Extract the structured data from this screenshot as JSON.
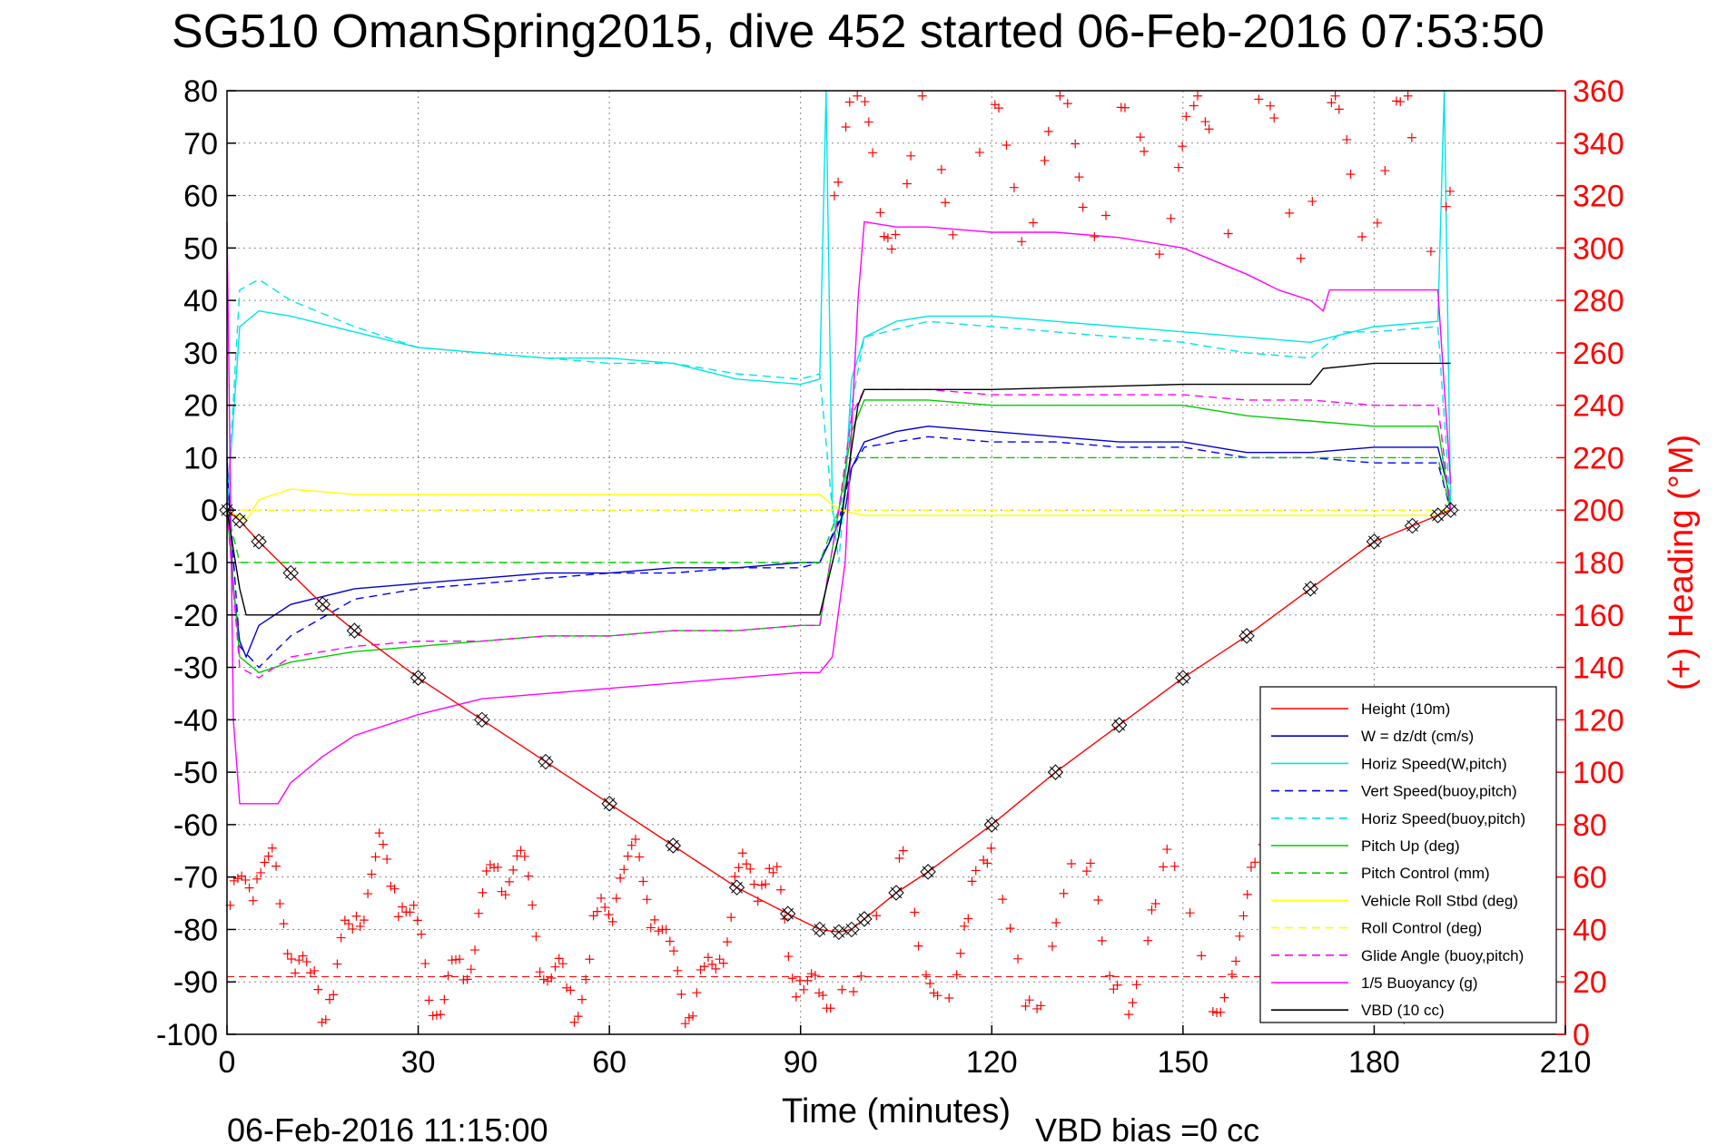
{
  "chart_data": {
    "type": "line",
    "title": "SG510 OmanSpring2015, dive 452 started 06-Feb-2016 07:53:50",
    "xlabel": "Time (minutes)",
    "ylabel": "",
    "y2label": "(+) Heading (°M)",
    "xlim": [
      0,
      210
    ],
    "ylim": [
      -100,
      80
    ],
    "y2lim": [
      0,
      360
    ],
    "xticks": [
      0,
      30,
      60,
      90,
      120,
      150,
      180,
      210
    ],
    "yticks": [
      80,
      70,
      60,
      50,
      40,
      30,
      20,
      10,
      0,
      -10,
      -20,
      -30,
      -40,
      -50,
      -60,
      -70,
      -80,
      -90,
      -100
    ],
    "y2ticks": [
      360,
      340,
      320,
      300,
      280,
      260,
      240,
      220,
      200,
      180,
      160,
      140,
      120,
      100,
      80,
      60,
      40,
      20,
      0
    ],
    "grid": true,
    "legend_position": "lower-right",
    "footer_left": "06-Feb-2016 11:15:00",
    "footer_right": "VBD bias =0 cc",
    "series": [
      {
        "name": "Height (10m)",
        "color": "#ff0000",
        "style": "solid",
        "x": [
          0,
          2,
          5,
          10,
          15,
          20,
          30,
          40,
          50,
          60,
          70,
          80,
          88,
          93,
          96,
          98,
          100,
          105,
          110,
          120,
          130,
          140,
          150,
          160,
          170,
          180,
          186,
          190,
          192
        ],
        "y": [
          0,
          -2,
          -6,
          -12,
          -18,
          -23,
          -32,
          -40,
          -48,
          -56,
          -64,
          -72,
          -77,
          -80,
          -80.5,
          -80,
          -78,
          -73,
          -69,
          -60,
          -50,
          -41,
          -32,
          -24,
          -15,
          -6,
          -3,
          -1,
          0
        ]
      },
      {
        "name": "W = dz/dt (cm/s)",
        "color": "#0000cc",
        "style": "solid",
        "x": [
          0,
          1,
          2,
          3,
          5,
          10,
          20,
          30,
          40,
          50,
          60,
          70,
          80,
          90,
          93,
          95,
          97,
          98,
          100,
          105,
          110,
          120,
          130,
          140,
          150,
          160,
          170,
          180,
          190,
          192
        ],
        "y": [
          10,
          -15,
          -25,
          -28,
          -22,
          -18,
          -15,
          -14,
          -13,
          -12,
          -12,
          -11,
          -11,
          -10,
          -10,
          -5,
          0,
          8,
          13,
          15,
          16,
          15,
          14,
          13,
          13,
          11,
          11,
          12,
          12,
          2
        ]
      },
      {
        "name": "Horiz Speed(W,pitch)",
        "color": "#00e5e5",
        "style": "solid",
        "x": [
          0,
          2,
          5,
          10,
          20,
          30,
          40,
          50,
          60,
          70,
          80,
          90,
          93,
          94,
          95,
          96,
          97,
          98,
          100,
          105,
          110,
          120,
          130,
          140,
          150,
          160,
          170,
          180,
          190,
          191,
          192
        ],
        "y": [
          0,
          35,
          38,
          37,
          34,
          31,
          30,
          29,
          29,
          28,
          25,
          24,
          25,
          80,
          0,
          -5,
          5,
          25,
          33,
          36,
          37,
          37,
          36,
          35,
          34,
          33,
          32,
          35,
          36,
          80,
          0
        ]
      },
      {
        "name": "Vert Speed(buoy,pitch)",
        "color": "#0000ff",
        "style": "dashed",
        "x": [
          0,
          2,
          5,
          10,
          20,
          30,
          40,
          50,
          60,
          70,
          80,
          90,
          93,
          96,
          98,
          100,
          110,
          120,
          130,
          140,
          150,
          160,
          170,
          180,
          190,
          192
        ],
        "y": [
          8,
          -26,
          -30,
          -24,
          -17,
          -15,
          -14,
          -13,
          -12,
          -12,
          -11,
          -11,
          -10,
          -2,
          8,
          12,
          14,
          13,
          13,
          12,
          12,
          10,
          10,
          9,
          9,
          0
        ]
      },
      {
        "name": "Horiz Speed(buoy,pitch)",
        "color": "#00e5e5",
        "style": "dashed",
        "x": [
          0,
          2,
          5,
          10,
          20,
          30,
          40,
          50,
          60,
          70,
          80,
          90,
          93,
          95,
          96,
          98,
          100,
          110,
          120,
          130,
          140,
          150,
          160,
          170,
          175,
          180,
          190,
          192
        ],
        "y": [
          0,
          42,
          44,
          40,
          35,
          31,
          30,
          29,
          28,
          28,
          26,
          25,
          26,
          0,
          -10,
          20,
          33,
          36,
          35,
          34,
          33,
          32,
          30,
          29,
          34,
          34,
          35,
          0
        ]
      },
      {
        "name": "Pitch Up (deg)",
        "color": "#00cc00",
        "style": "solid",
        "x": [
          0,
          2,
          5,
          10,
          20,
          30,
          40,
          50,
          60,
          70,
          80,
          90,
          93,
          96,
          98,
          100,
          110,
          120,
          130,
          140,
          150,
          160,
          170,
          180,
          190,
          192
        ],
        "y": [
          0,
          -28,
          -31,
          -29,
          -27,
          -26,
          -25,
          -24,
          -24,
          -23,
          -23,
          -22,
          -22,
          0,
          15,
          21,
          21,
          20,
          20,
          20,
          20,
          18,
          17,
          16,
          16,
          0
        ]
      },
      {
        "name": "Pitch Control (mm)",
        "color": "#00cc00",
        "style": "dashed",
        "x": [
          0,
          2,
          5,
          10,
          20,
          30,
          40,
          50,
          60,
          70,
          80,
          90,
          93,
          96,
          98,
          100,
          110,
          120,
          130,
          140,
          150,
          160,
          170,
          180,
          190,
          192
        ],
        "y": [
          0,
          -10,
          -10,
          -10,
          -10,
          -10,
          -10,
          -10,
          -10,
          -10,
          -10,
          -10,
          -10,
          0,
          10,
          10,
          10,
          10,
          10,
          10,
          10,
          10,
          10,
          10,
          10,
          0
        ]
      },
      {
        "name": "Vehicle Roll Stbd (deg)",
        "color": "#ffff00",
        "style": "solid",
        "x": [
          0,
          3,
          5,
          10,
          20,
          30,
          40,
          50,
          60,
          70,
          80,
          90,
          93,
          96,
          100,
          110,
          120,
          130,
          140,
          150,
          160,
          170,
          180,
          190,
          192
        ],
        "y": [
          0,
          -2,
          2,
          4,
          3,
          3,
          3,
          3,
          3,
          3,
          3,
          3,
          3,
          0,
          -1,
          -1,
          -1,
          -1,
          -1,
          -1,
          -1,
          -1,
          -1,
          -1,
          0
        ]
      },
      {
        "name": "Roll Control (deg)",
        "color": "#ffff00",
        "style": "dashed",
        "x": [
          0,
          3,
          10,
          20,
          30,
          40,
          50,
          60,
          70,
          80,
          90,
          93,
          96,
          100,
          120,
          140,
          160,
          180,
          192
        ],
        "y": [
          0,
          0,
          0,
          0,
          0,
          0,
          0,
          0,
          0,
          0,
          0,
          0,
          0,
          0,
          0,
          0,
          0,
          0,
          0
        ]
      },
      {
        "name": "Glide Angle (buoy,pitch)",
        "color": "#ff00ff",
        "style": "dashed",
        "x": [
          0,
          2,
          5,
          10,
          20,
          30,
          40,
          50,
          60,
          70,
          80,
          90,
          93,
          96,
          98,
          100,
          110,
          120,
          130,
          140,
          150,
          160,
          170,
          180,
          190,
          192
        ],
        "y": [
          0,
          -30,
          -32,
          -28,
          -26,
          -25,
          -25,
          -24,
          -24,
          -23,
          -23,
          -22,
          -22,
          0,
          18,
          23,
          23,
          22,
          22,
          22,
          22,
          21,
          21,
          20,
          20,
          0
        ]
      },
      {
        "name": "1/5 Buoyancy (g)",
        "color": "#ff00ff",
        "style": "solid",
        "x": [
          0,
          1,
          2,
          8,
          10,
          15,
          20,
          30,
          40,
          50,
          60,
          70,
          80,
          90,
          93,
          95,
          97,
          99,
          100,
          105,
          110,
          120,
          130,
          140,
          150,
          160,
          165,
          170,
          172,
          173,
          180,
          190,
          192
        ],
        "y": [
          55,
          -40,
          -56,
          -56,
          -52,
          -47,
          -43,
          -39,
          -36,
          -35,
          -34,
          -33,
          -32,
          -31,
          -31,
          -28,
          -10,
          40,
          55,
          54,
          54,
          53,
          53,
          52,
          50,
          45,
          42,
          40,
          38,
          42,
          42,
          42,
          5
        ]
      },
      {
        "name": "VBD (10 cc)",
        "color": "#000000",
        "style": "solid",
        "x": [
          0,
          2,
          3,
          10,
          30,
          60,
          90,
          93,
          94,
          96,
          99,
          100,
          110,
          120,
          150,
          170,
          172,
          180,
          190,
          192
        ],
        "y": [
          0,
          -15,
          -20,
          -20,
          -20,
          -20,
          -20,
          -20,
          -15,
          -5,
          20,
          23,
          23,
          23,
          24,
          24,
          27,
          28,
          28,
          28
        ]
      }
    ]
  }
}
